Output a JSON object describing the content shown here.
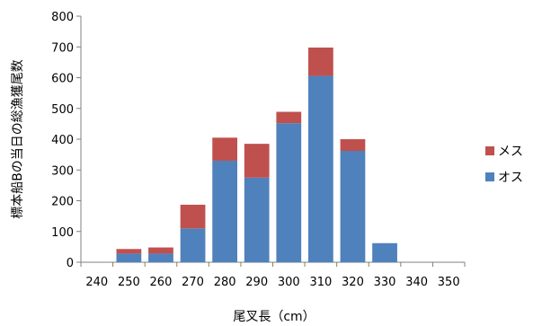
{
  "chart_data": {
    "type": "bar",
    "stacked": true,
    "title": "",
    "xlabel": "尾叉長（cm）",
    "ylabel": "標本船Bの当日の総漁獲尾数",
    "categories": [
      "240",
      "250",
      "260",
      "270",
      "280",
      "290",
      "300",
      "310",
      "320",
      "330",
      "340",
      "350"
    ],
    "ylim": [
      0,
      800
    ],
    "yticks": [
      0,
      100,
      200,
      300,
      400,
      500,
      600,
      700,
      800
    ],
    "grid": false,
    "legend_position": "right",
    "series": [
      {
        "name": "オス",
        "color": "#4f81bd",
        "values": [
          0,
          28,
          28,
          110,
          330,
          275,
          452,
          606,
          362,
          62,
          0,
          0
        ]
      },
      {
        "name": "メス",
        "color": "#c0504d",
        "values": [
          0,
          15,
          20,
          77,
          75,
          110,
          37,
          92,
          38,
          0,
          0,
          0
        ]
      }
    ]
  }
}
